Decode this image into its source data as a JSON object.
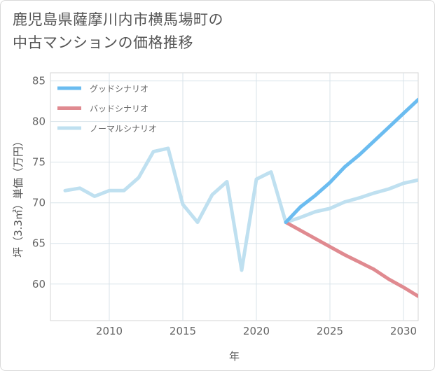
{
  "title_lines": [
    "鹿児島県薩摩川内市横馬場町の",
    "中古マンションの価格推移"
  ],
  "chart_data": {
    "type": "line",
    "title": "鹿児島県薩摩川内市横馬場町の中古マンションの価格推移",
    "xlabel": "年",
    "ylabel": "坪（3.3㎡）単価（万円）",
    "xlim": [
      2006,
      2031
    ],
    "ylim": [
      55.5,
      86
    ],
    "xticks": [
      2010,
      2015,
      2020,
      2025,
      2030
    ],
    "yticks": [
      60,
      65,
      70,
      75,
      80,
      85
    ],
    "grid": true,
    "legend_position": "top-left",
    "series": [
      {
        "name": "グッドシナリオ",
        "color": "#6bbcf0",
        "x": [
          2022,
          2023,
          2024,
          2025,
          2026,
          2027,
          2028,
          2029,
          2030,
          2031
        ],
        "values": [
          67.6,
          69.5,
          70.9,
          72.5,
          74.4,
          75.9,
          77.6,
          79.3,
          81.0,
          82.7
        ]
      },
      {
        "name": "バッドシナリオ",
        "color": "#e08a90",
        "x": [
          2022,
          2023,
          2024,
          2025,
          2026,
          2027,
          2028,
          2029,
          2030,
          2031
        ],
        "values": [
          67.6,
          66.6,
          65.6,
          64.6,
          63.6,
          62.7,
          61.8,
          60.6,
          59.6,
          58.5
        ]
      },
      {
        "name": "ノーマルシナリオ",
        "color": "#bfe0f0",
        "x": [
          2007,
          2008,
          2009,
          2010,
          2011,
          2012,
          2013,
          2014,
          2015,
          2016,
          2017,
          2018,
          2019,
          2020,
          2021,
          2022,
          2023,
          2024,
          2025,
          2026,
          2027,
          2028,
          2029,
          2030,
          2031
        ],
        "values": [
          71.5,
          71.8,
          70.8,
          71.5,
          71.5,
          73.1,
          76.3,
          76.7,
          69.8,
          67.6,
          71.0,
          72.6,
          61.7,
          72.9,
          73.8,
          67.6,
          68.2,
          68.9,
          69.3,
          70.1,
          70.6,
          71.2,
          71.7,
          72.4,
          72.8
        ]
      }
    ]
  }
}
